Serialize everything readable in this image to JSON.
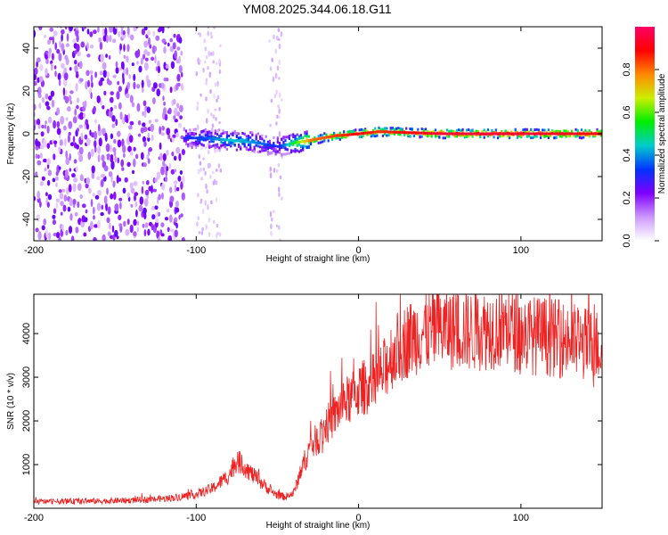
{
  "title": "YM08.2025.344.06.18.G11",
  "colors": {
    "snr_line": "#ee2222",
    "cbar_stops": [
      "#ffffff",
      "#cc99ff",
      "#7f00ff",
      "#0033ff",
      "#00cccc",
      "#00ee00",
      "#ccee00",
      "#ff8800",
      "#ff0000",
      "#ff0066"
    ]
  },
  "chart_data": [
    {
      "type": "heatmap",
      "name": "spectrogram",
      "xlabel": "Height of straight line (km)",
      "ylabel": "Frequency (Hz)",
      "xlim": [
        -200,
        150
      ],
      "ylim": [
        -50,
        50
      ],
      "xticks": [
        -200,
        -100,
        0,
        100
      ],
      "xtick_labels": [
        "-200",
        "-100",
        "0",
        "100"
      ],
      "yticks": [
        -40,
        -20,
        0,
        20,
        40
      ],
      "ytick_labels": [
        "-40",
        "-20",
        "0",
        "20",
        "40"
      ],
      "colorbar": {
        "label": "Normalized spectral amplitude",
        "range": [
          0,
          1
        ],
        "ticks": [
          0.0,
          0.2,
          0.4,
          0.6,
          0.8
        ],
        "tick_labels": [
          "0.0",
          "0.2",
          "0.4",
          "0.6",
          "0.8"
        ]
      },
      "noise_region": {
        "x_range": [
          -200,
          -108
        ],
        "y_range": [
          -50,
          50
        ],
        "amplitude": 0.2
      },
      "ridge": [
        {
          "x": -108,
          "y": -2,
          "amp": 0.3
        },
        {
          "x": -95,
          "y": -2,
          "amp": 0.35
        },
        {
          "x": -80,
          "y": -3,
          "amp": 0.45
        },
        {
          "x": -65,
          "y": -4,
          "amp": 0.4
        },
        {
          "x": -50,
          "y": -6,
          "amp": 0.3
        },
        {
          "x": -38,
          "y": -4,
          "amp": 0.6
        },
        {
          "x": -30,
          "y": -3,
          "amp": 0.8
        },
        {
          "x": -15,
          "y": -1,
          "amp": 0.85
        },
        {
          "x": 0,
          "y": 0,
          "amp": 0.9
        },
        {
          "x": 12,
          "y": 1,
          "amp": 0.85
        },
        {
          "x": 50,
          "y": 0,
          "amp": 0.95
        },
        {
          "x": 100,
          "y": 0,
          "amp": 0.95
        },
        {
          "x": 150,
          "y": 0,
          "amp": 0.9
        }
      ]
    },
    {
      "type": "line",
      "name": "snr",
      "xlabel": "Height of straight line (km)",
      "ylabel": "SNR (10 * v/v)",
      "xlim": [
        -200,
        150
      ],
      "ylim": [
        0,
        4900
      ],
      "xticks": [
        -200,
        -100,
        0,
        100
      ],
      "xtick_labels": [
        "-200",
        "-100",
        "0",
        "100"
      ],
      "yticks": [
        1000,
        2000,
        3000,
        4000
      ],
      "ytick_labels": [
        "1000",
        "2000",
        "3000",
        "4000"
      ],
      "series": [
        {
          "name": "SNR",
          "x": [
            -200,
            -180,
            -160,
            -140,
            -120,
            -110,
            -100,
            -90,
            -80,
            -75,
            -70,
            -65,
            -60,
            -55,
            -50,
            -45,
            -40,
            -35,
            -30,
            -25,
            -20,
            -15,
            -10,
            -5,
            0,
            5,
            10,
            15,
            20,
            25,
            30,
            35,
            40,
            50,
            60,
            70,
            80,
            90,
            100,
            110,
            120,
            130,
            140,
            150
          ],
          "y": [
            150,
            160,
            165,
            180,
            220,
            260,
            320,
            450,
            750,
            1100,
            950,
            750,
            600,
            420,
            300,
            260,
            350,
            900,
            1400,
            1600,
            1900,
            2100,
            2400,
            2500,
            2700,
            2800,
            2900,
            3100,
            3500,
            3700,
            3850,
            3950,
            4050,
            4100,
            4100,
            4050,
            4100,
            4150,
            4000,
            3950,
            3900,
            3850,
            3750,
            3700
          ]
        }
      ]
    }
  ]
}
